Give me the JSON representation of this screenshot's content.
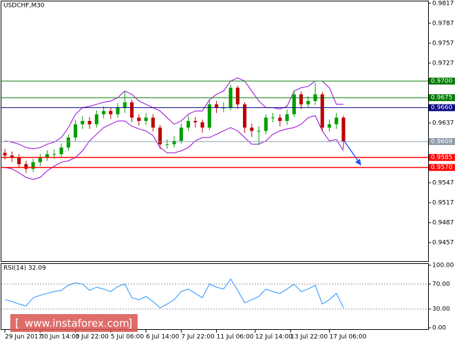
{
  "chart_data": [
    {
      "type": "candlestick",
      "title": "USDCHF,M30",
      "xlim": [
        -0.5,
        60
      ],
      "xticks": [
        {
          "value": 0,
          "label": "29 Jun 2017"
        },
        {
          "value": 5,
          "label": "30 Jun 14:00"
        },
        {
          "value": 10,
          "label": "3 Jul 22:00"
        },
        {
          "value": 15,
          "label": "5 Jul 06:00"
        },
        {
          "value": 20,
          "label": "6 Jul 14:00"
        },
        {
          "value": 25,
          "label": "7 Jul 22:00"
        },
        {
          "value": 30,
          "label": "11 Jul 06:00"
        },
        {
          "value": 35.5,
          "label": "12 Jul 14:00"
        },
        {
          "value": 40.5,
          "label": "13 Jul 22:00"
        },
        {
          "value": 46,
          "label": "17 Jul 06:00"
        }
      ],
      "ylim": [
        0.9429,
        0.9822
      ],
      "yticks": [
        0.9817,
        0.9787,
        0.9757,
        0.9727,
        0.9637,
        0.9547,
        0.9517,
        0.9487,
        0.9457
      ],
      "up_color": "#00a000",
      "down_color": "#c00000",
      "ohlc": [
        [
          0.9592,
          0.9598,
          0.9582,
          0.9588
        ],
        [
          0.9588,
          0.9594,
          0.9578,
          0.9585
        ],
        [
          0.9585,
          0.959,
          0.9569,
          0.9575
        ],
        [
          0.9575,
          0.958,
          0.9562,
          0.9568
        ],
        [
          0.9568,
          0.9583,
          0.9563,
          0.9578
        ],
        [
          0.9578,
          0.959,
          0.9572,
          0.9585
        ],
        [
          0.9585,
          0.9596,
          0.958,
          0.959
        ],
        [
          0.959,
          0.9597,
          0.9583,
          0.959
        ],
        [
          0.959,
          0.9606,
          0.9585,
          0.96
        ],
        [
          0.96,
          0.962,
          0.9595,
          0.9615
        ],
        [
          0.9615,
          0.9642,
          0.961,
          0.9635
        ],
        [
          0.9635,
          0.9647,
          0.9628,
          0.964
        ],
        [
          0.964,
          0.9646,
          0.9628,
          0.9635
        ],
        [
          0.9635,
          0.9656,
          0.963,
          0.965
        ],
        [
          0.965,
          0.9662,
          0.9644,
          0.9655
        ],
        [
          0.9655,
          0.966,
          0.9643,
          0.965
        ],
        [
          0.965,
          0.9667,
          0.9645,
          0.966
        ],
        [
          0.966,
          0.9685,
          0.9652,
          0.9668
        ],
        [
          0.9668,
          0.9672,
          0.9638,
          0.9645
        ],
        [
          0.9645,
          0.965,
          0.9633,
          0.964
        ],
        [
          0.964,
          0.9652,
          0.9634,
          0.9645
        ],
        [
          0.9645,
          0.965,
          0.9624,
          0.963
        ],
        [
          0.963,
          0.9634,
          0.9598,
          0.9605
        ],
        [
          0.9605,
          0.9612,
          0.9598,
          0.9605
        ],
        [
          0.9605,
          0.9617,
          0.96,
          0.961
        ],
        [
          0.961,
          0.9636,
          0.9606,
          0.963
        ],
        [
          0.963,
          0.9648,
          0.9625,
          0.964
        ],
        [
          0.964,
          0.9646,
          0.963,
          0.9638
        ],
        [
          0.9638,
          0.9642,
          0.9622,
          0.963
        ],
        [
          0.963,
          0.9672,
          0.9626,
          0.9665
        ],
        [
          0.9665,
          0.967,
          0.9652,
          0.966
        ],
        [
          0.966,
          0.9668,
          0.9653,
          0.966
        ],
        [
          0.966,
          0.9695,
          0.9656,
          0.969
        ],
        [
          0.969,
          0.9693,
          0.9658,
          0.9665
        ],
        [
          0.9665,
          0.9668,
          0.9622,
          0.963
        ],
        [
          0.963,
          0.9636,
          0.9616,
          0.9625
        ],
        [
          0.9625,
          0.9632,
          0.9604,
          0.9625
        ],
        [
          0.9625,
          0.965,
          0.962,
          0.9645
        ],
        [
          0.9645,
          0.9652,
          0.9638,
          0.9645
        ],
        [
          0.9645,
          0.965,
          0.9632,
          0.964
        ],
        [
          0.964,
          0.9657,
          0.9634,
          0.965
        ],
        [
          0.965,
          0.9686,
          0.9646,
          0.968
        ],
        [
          0.968,
          0.9684,
          0.9658,
          0.9665
        ],
        [
          0.9665,
          0.9677,
          0.966,
          0.967
        ],
        [
          0.967,
          0.9697,
          0.9664,
          0.968
        ],
        [
          0.968,
          0.9684,
          0.9625,
          0.963
        ],
        [
          0.963,
          0.9642,
          0.9624,
          0.9635
        ],
        [
          0.9635,
          0.9652,
          0.9628,
          0.9645
        ],
        [
          0.9645,
          0.9648,
          0.9598,
          0.9609
        ]
      ],
      "bands": {
        "color": "#9400d3",
        "upper": [
          0.961,
          0.9608,
          0.9605,
          0.96,
          0.9598,
          0.96,
          0.9605,
          0.9608,
          0.9615,
          0.963,
          0.965,
          0.966,
          0.9662,
          0.9665,
          0.9668,
          0.967,
          0.9675,
          0.9685,
          0.968,
          0.967,
          0.9665,
          0.966,
          0.9655,
          0.9645,
          0.9635,
          0.964,
          0.965,
          0.9655,
          0.9655,
          0.9672,
          0.968,
          0.9685,
          0.97,
          0.9705,
          0.97,
          0.9685,
          0.967,
          0.966,
          0.966,
          0.9658,
          0.9662,
          0.9685,
          0.969,
          0.9692,
          0.97,
          0.97,
          0.969,
          0.9665,
          0.9665
        ],
        "lower": [
          0.957,
          0.9568,
          0.9562,
          0.9555,
          0.9552,
          0.9555,
          0.9565,
          0.9572,
          0.9578,
          0.958,
          0.9585,
          0.9595,
          0.961,
          0.962,
          0.963,
          0.9635,
          0.964,
          0.964,
          0.9632,
          0.9628,
          0.9625,
          0.9618,
          0.96,
          0.9592,
          0.9592,
          0.9595,
          0.96,
          0.961,
          0.9615,
          0.9615,
          0.962,
          0.9625,
          0.963,
          0.9625,
          0.9615,
          0.9605,
          0.9605,
          0.961,
          0.962,
          0.9625,
          0.9628,
          0.963,
          0.9635,
          0.9645,
          0.9648,
          0.9625,
          0.961,
          0.9612,
          0.9595
        ]
      },
      "levels": [
        {
          "value": 0.97,
          "label": "0.9700",
          "color": "#007800"
        },
        {
          "value": 0.9675,
          "color": "#007800"
        },
        {
          "value": 0.966,
          "label": "0.9660",
          "color": "#000080"
        },
        {
          "value": 0.9609,
          "color": "#8c9aa8"
        },
        {
          "value": 0.9585,
          "color": "#ff0000"
        },
        {
          "value": 0.957,
          "label": "0.9570",
          "color": "#ff0000"
        }
      ],
      "watermark": "www.instaforex.com"
    },
    {
      "type": "line",
      "title": "RSI(14) 32.09",
      "color": "#1e90ff",
      "ylim": [
        0,
        100
      ],
      "yticks": [
        {
          "value": 100,
          "label": "100.00"
        },
        {
          "value": 70,
          "label": "70.00"
        },
        {
          "value": 30,
          "label": "30.00"
        },
        {
          "value": 0,
          "label": "0.00"
        }
      ],
      "values": [
        45,
        42,
        38,
        35,
        48,
        52,
        55,
        58,
        60,
        68,
        72,
        70,
        60,
        65,
        62,
        58,
        66,
        70,
        48,
        45,
        50,
        42,
        32,
        38,
        45,
        58,
        62,
        55,
        48,
        70,
        65,
        62,
        78,
        60,
        40,
        45,
        50,
        62,
        58,
        55,
        62,
        70,
        58,
        62,
        68,
        38,
        45,
        55,
        32.09
      ]
    }
  ]
}
